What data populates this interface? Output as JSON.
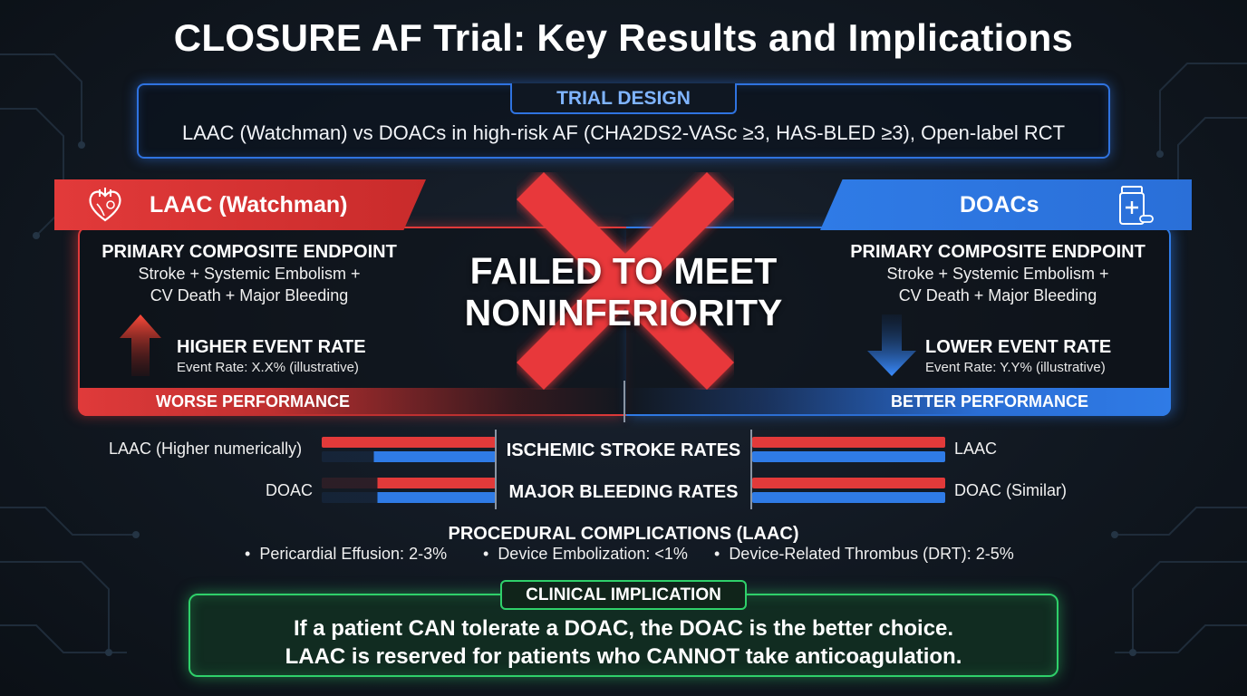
{
  "title": "CLOSURE AF Trial: Key Results and Implications",
  "trial_design": {
    "label": "TRIAL DESIGN",
    "text": "LAAC (Watchman) vs DOACs in high-risk AF (CHA2DS2-VASc ≥3, HAS-BLED ≥3), Open-label RCT"
  },
  "left_panel": {
    "banner": "LAAC (Watchman)",
    "icon": "heart-icon",
    "endpoint_heading": "PRIMARY COMPOSITE ENDPOINT",
    "endpoint_line1": "Stroke + Systemic Embolism +",
    "endpoint_line2": "CV Death + Major Bleeding",
    "rate_title": "HIGHER EVENT RATE",
    "rate_sub": "Event Rate: X.X% (illustrative)",
    "performance": "WORSE PERFORMANCE"
  },
  "right_panel": {
    "banner": "DOACs",
    "icon": "pill-bottle-icon",
    "endpoint_heading": "PRIMARY COMPOSITE ENDPOINT",
    "endpoint_line1": "Stroke + Systemic Embolism +",
    "endpoint_line2": "CV Death + Major Bleeding",
    "rate_title": "LOWER EVENT RATE",
    "rate_sub": "Event Rate: Y.Y% (illustrative)",
    "performance": "BETTER PERFORMANCE"
  },
  "center": {
    "verdict_line1": "FAILED TO MEET",
    "verdict_line2": "NONINFERIORITY"
  },
  "comparisons": {
    "ischemic_title": "ISCHEMIC STROKE RATES",
    "bleeding_title": "MAJOR BLEEDING RATES",
    "left_label_1": "LAAC (Higher numerically)",
    "left_label_2": "DOAC",
    "right_label_1": "LAAC",
    "right_label_2": "DOAC (Similar)"
  },
  "procedural": {
    "title": "PROCEDURAL COMPLICATIONS (LAAC)",
    "items": [
      "Pericardial Effusion: 2-3%",
      "Device Embolization: <1%",
      "Device-Related Thrombus (DRT): 2-5%"
    ]
  },
  "implication": {
    "label": "CLINICAL IMPLICATION",
    "line1": "If a patient CAN tolerate a DOAC, the DOAC is the better choice.",
    "line2": "LAAC is reserved for patients who CANNOT take anticoagulation."
  },
  "colors": {
    "laac_red": "#e23a3a",
    "doac_blue": "#2f7be6",
    "implication_green": "#2fd06a",
    "background": "#111821"
  }
}
